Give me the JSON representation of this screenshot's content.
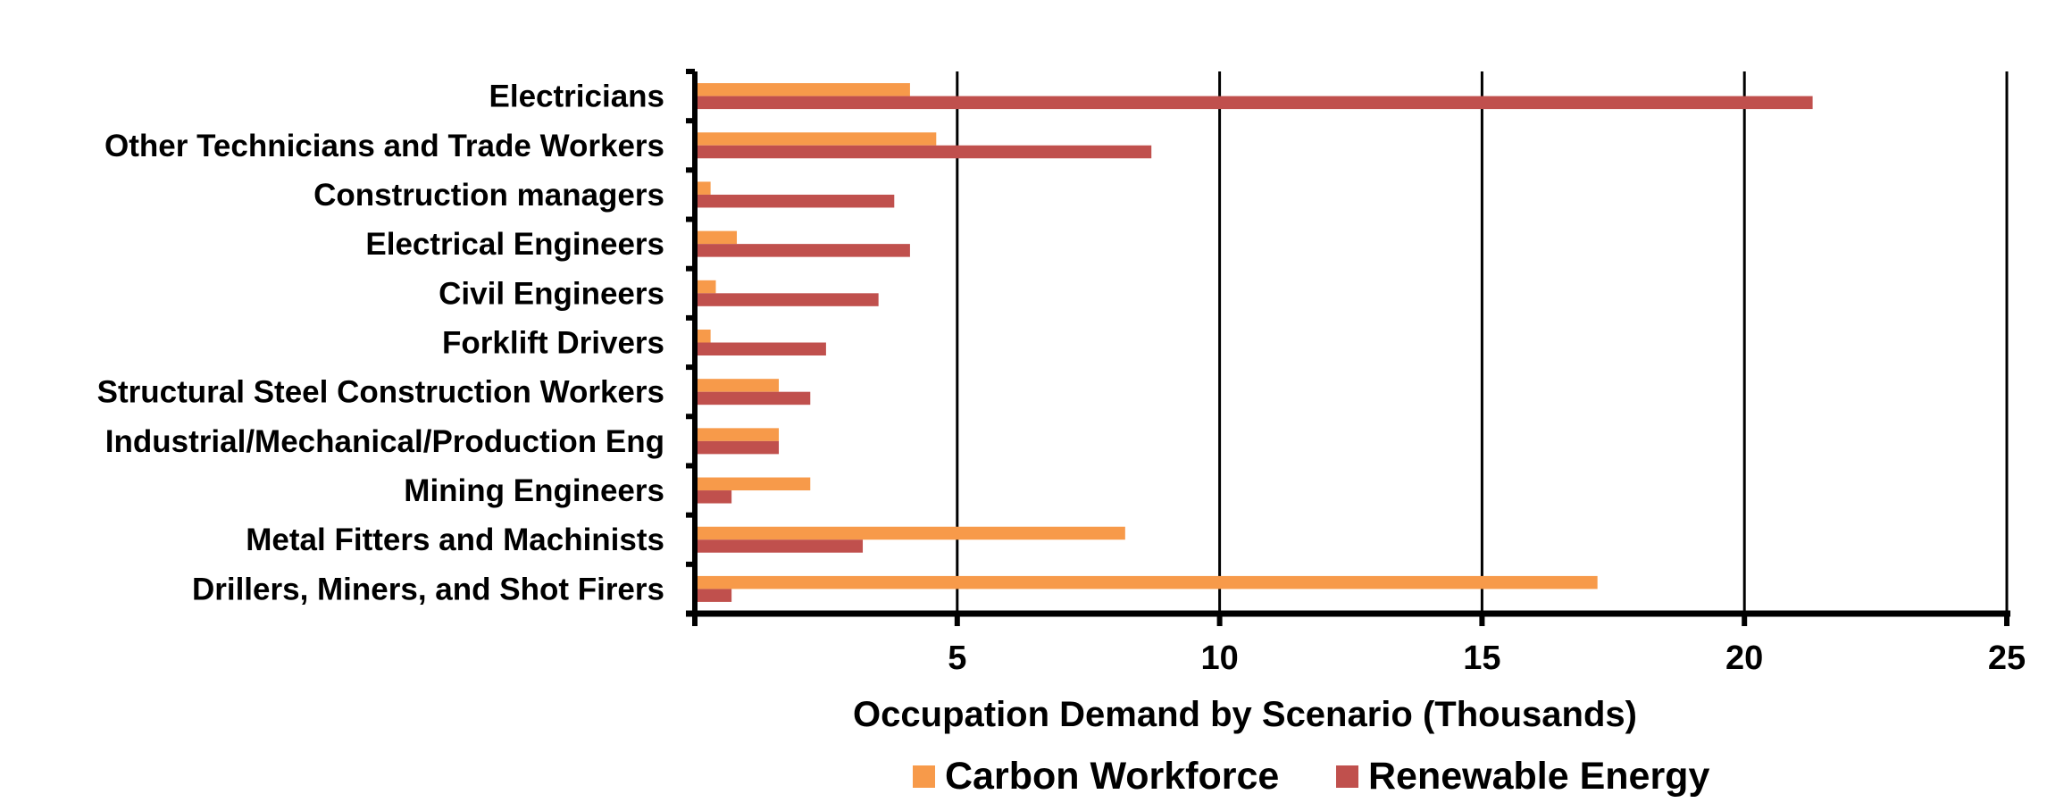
{
  "chart_data": {
    "type": "bar",
    "orientation": "horizontal",
    "categories": [
      "Electricians",
      "Other Technicians and Trade Workers",
      "Construction managers",
      "Electrical Engineers",
      "Civil Engineers",
      "Forklift Drivers",
      "Structural Steel Construction Workers",
      "Industrial/Mechanical/Production Eng",
      "Mining Engineers",
      "Metal Fitters and Machinists",
      "Drillers, Miners, and Shot Firers"
    ],
    "series": [
      {
        "name": "Carbon Workforce",
        "color": "#F79A4A",
        "values": [
          4.1,
          4.6,
          0.3,
          0.8,
          0.4,
          0.3,
          1.6,
          1.6,
          2.2,
          8.2,
          17.2
        ]
      },
      {
        "name": "Renewable Energy",
        "color": "#C0504D",
        "values": [
          21.3,
          8.7,
          3.8,
          4.1,
          3.5,
          2.5,
          2.2,
          1.6,
          0.7,
          3.2,
          0.7
        ]
      }
    ],
    "xlabel": "Occupation Demand by Scenario (Thousands)",
    "xlim": [
      0,
      25
    ],
    "xticks": [
      5,
      10,
      15,
      20,
      25
    ],
    "grid": "vertical",
    "legend": "bottom"
  }
}
